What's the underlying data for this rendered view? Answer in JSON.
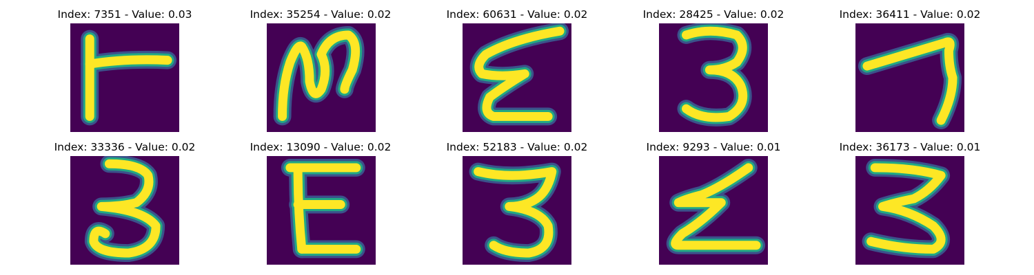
{
  "colors": {
    "background": "#440154",
    "stroke_core": "#fde725",
    "stroke_edge": "#22a884",
    "stroke_outer": "#3b528b",
    "title_text": "#000000"
  },
  "panels": [
    {
      "title": "Index: 7351 - Value: 0.03",
      "index": 7351,
      "value": 0.03
    },
    {
      "title": "Index: 35254 - Value: 0.02",
      "index": 35254,
      "value": 0.02
    },
    {
      "title": "Index: 60631 - Value: 0.02",
      "index": 60631,
      "value": 0.02
    },
    {
      "title": "Index: 28425 - Value: 0.02",
      "index": 28425,
      "value": 0.02
    },
    {
      "title": "Index: 36411 - Value: 0.02",
      "index": 36411,
      "value": 0.02
    },
    {
      "title": "Index: 33336 - Value: 0.02",
      "index": 33336,
      "value": 0.02
    },
    {
      "title": "Index: 13090 - Value: 0.02",
      "index": 13090,
      "value": 0.02
    },
    {
      "title": "Index: 52183 - Value: 0.02",
      "index": 52183,
      "value": 0.02
    },
    {
      "title": "Index: 9293 - Value: 0.01",
      "index": 9293,
      "value": 0.01
    },
    {
      "title": "Index: 36173 - Value: 0.01",
      "index": 36173,
      "value": 0.01
    }
  ]
}
